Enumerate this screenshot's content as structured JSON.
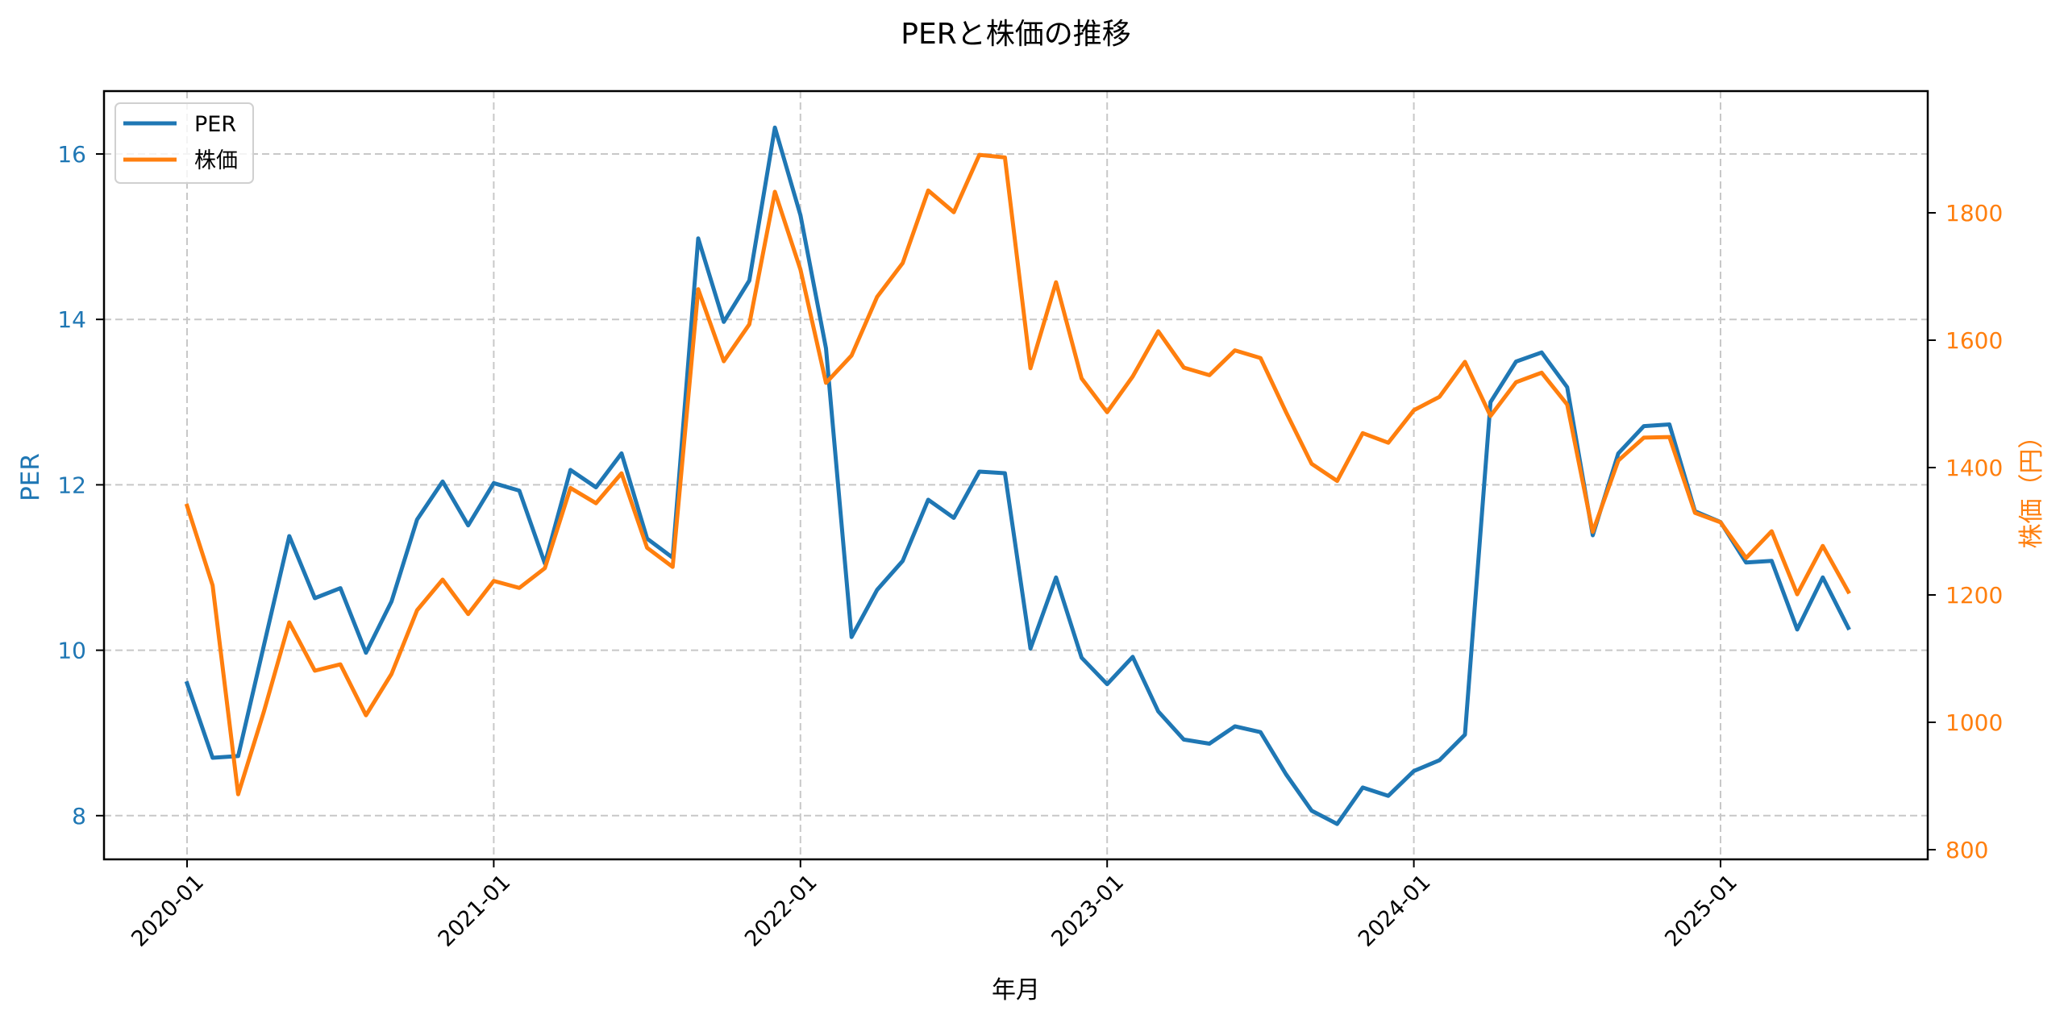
{
  "chart_data": {
    "type": "line",
    "title": "PERと株価の推移",
    "xlabel": "年月",
    "ylabel": "PER",
    "ylabel_right": "株価（円）",
    "x_tick_labels": [
      "2020-01",
      "2021-01",
      "2022-01",
      "2023-01",
      "2024-01",
      "2025-01"
    ],
    "y_ticks_left": [
      8,
      10,
      12,
      14,
      16
    ],
    "y_ticks_right": [
      800,
      1000,
      1200,
      1400,
      1600,
      1800
    ],
    "ylim": [
      7.48,
      16.78
    ],
    "ylim_right": [
      785,
      1965
    ],
    "grid": true,
    "legend": {
      "position": "upper left",
      "entries": [
        "PER",
        "株価"
      ]
    },
    "x": [
      "2020-01",
      "2020-02",
      "2020-03",
      "2020-04",
      "2020-05",
      "2020-06",
      "2020-07",
      "2020-08",
      "2020-09",
      "2020-10",
      "2020-11",
      "2020-12",
      "2021-01",
      "2021-02",
      "2021-03",
      "2021-04",
      "2021-05",
      "2021-06",
      "2021-07",
      "2021-08",
      "2021-09",
      "2021-10",
      "2021-11",
      "2021-12",
      "2022-01",
      "2022-02",
      "2022-03",
      "2022-04",
      "2022-05",
      "2022-06",
      "2022-07",
      "2022-08",
      "2022-09",
      "2022-10",
      "2022-11",
      "2022-12",
      "2023-01",
      "2023-02",
      "2023-03",
      "2023-04",
      "2023-05",
      "2023-06",
      "2023-07",
      "2023-08",
      "2023-09",
      "2023-10",
      "2023-11",
      "2023-12",
      "2024-01",
      "2024-02",
      "2024-03",
      "2024-04",
      "2024-05",
      "2024-06",
      "2024-07",
      "2024-08",
      "2024-09",
      "2024-10",
      "2024-11",
      "2024-12",
      "2025-01",
      "2025-02",
      "2025-03",
      "2025-04",
      "2025-05",
      "2025-06"
    ],
    "series": [
      {
        "name": "PER",
        "axis": "left",
        "color": "#1f77b4",
        "values": [
          9.6,
          8.7,
          8.72,
          10.05,
          11.38,
          10.63,
          10.75,
          9.97,
          10.59,
          11.58,
          12.04,
          11.51,
          12.02,
          11.93,
          11.05,
          12.18,
          11.97,
          12.38,
          11.35,
          11.12,
          14.98,
          13.97,
          14.47,
          16.32,
          15.26,
          13.65,
          10.16,
          10.73,
          11.08,
          11.82,
          11.6,
          12.16,
          12.14,
          10.02,
          10.88,
          9.91,
          9.59,
          9.92,
          9.26,
          8.92,
          8.87,
          9.08,
          9.01,
          8.5,
          8.06,
          7.9,
          8.34,
          8.24,
          8.54,
          8.67,
          8.98,
          13.0,
          13.49,
          13.6,
          13.18,
          11.39,
          12.38,
          12.71,
          12.73,
          11.68,
          11.55,
          11.06,
          11.08,
          10.25,
          10.88,
          10.27
        ]
      },
      {
        "name": "株価",
        "axis": "right",
        "color": "#ff7f0e",
        "values": [
          1340,
          1215,
          887,
          1016,
          1157,
          1081,
          1091,
          1011,
          1076,
          1176,
          1224,
          1170,
          1222,
          1211,
          1242,
          1368,
          1344,
          1391,
          1274,
          1244,
          1680,
          1567,
          1625,
          1833,
          1711,
          1533,
          1576,
          1668,
          1721,
          1835,
          1801,
          1891,
          1887,
          1556,
          1691,
          1540,
          1487,
          1543,
          1614,
          1557,
          1545,
          1584,
          1572,
          1487,
          1406,
          1379,
          1454,
          1439,
          1490,
          1511,
          1566,
          1481,
          1534,
          1549,
          1499,
          1299,
          1411,
          1447,
          1448,
          1329,
          1314,
          1258,
          1300,
          1201,
          1277,
          1205
        ]
      }
    ]
  },
  "colors": {
    "per": "#1f77b4",
    "price": "#ff7f0e",
    "grid": "#c8c8c8",
    "axis": "#000000"
  }
}
